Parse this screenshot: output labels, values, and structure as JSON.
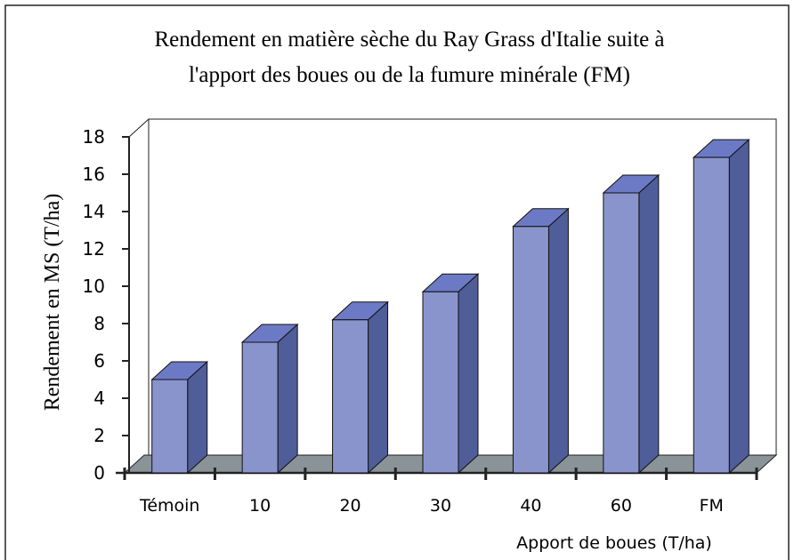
{
  "chart_data": {
    "type": "bar3d",
    "title": [
      "Rendement en matière sèche du Ray Grass d'Italie suite à",
      "l'apport des boues ou de la fumure minérale (FM)"
    ],
    "y_label": "Rendement en MS (T/ha)",
    "x_label": "Apport de boues (T/ha)",
    "categories": [
      "Témoin",
      "10",
      "20",
      "30",
      "40",
      "60",
      "FM"
    ],
    "values": [
      5,
      7,
      8.2,
      9.7,
      13.2,
      15,
      16.9
    ],
    "color": "#8a94cc",
    "ylim": [
      0,
      18
    ],
    "yticks": [
      0,
      2,
      4,
      6,
      8,
      10,
      12,
      14,
      16,
      18
    ]
  }
}
